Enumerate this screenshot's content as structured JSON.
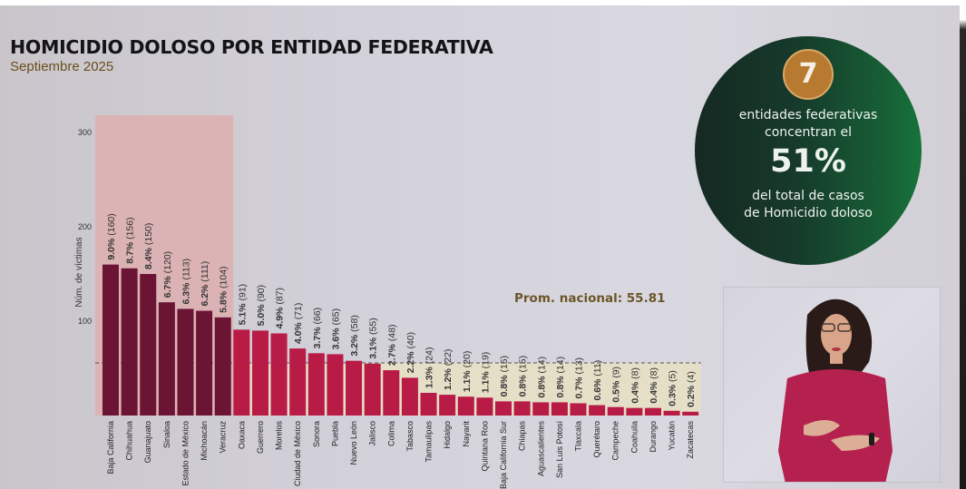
{
  "header": {
    "title": "HOMICIDIO DOLOSO POR ENTIDAD FEDERATIVA",
    "subtitle": "Septiembre 2025"
  },
  "highlight_card": {
    "number": "7",
    "line1": "entidades federativas",
    "line2": "concentran el",
    "percent": "51%",
    "line3": "del total de casos",
    "line4": "de Homicidio doloso"
  },
  "colors": {
    "top_bar": "#6b1433",
    "other_bar": "#b81b45",
    "highlight_bg": "#dcb3b5",
    "below_avg_bg": "#e6dfc8",
    "average_text": "#6b5629",
    "circle_green": "#17733a",
    "badge_gold": "#b87a30"
  },
  "chart_data": {
    "type": "bar",
    "title": "HOMICIDIO DOLOSO POR ENTIDAD FEDERATIVA",
    "subtitle": "Septiembre 2025",
    "xlabel": "",
    "ylabel": "Núm. de víctimas",
    "ylim": [
      0,
      300
    ],
    "yticks": [
      "100",
      "200",
      "300"
    ],
    "grid": false,
    "average": {
      "label": "Prom. nacional: 55.81",
      "value": 55.81
    },
    "highlighted_count": 7,
    "categories": [
      "Baja California",
      "Chihuahua",
      "Guanajuato",
      "Sinaloa",
      "Estado de México",
      "Michoacán",
      "Veracruz",
      "Oaxaca",
      "Guerrero",
      "Morelos",
      "Ciudad de México",
      "Sonora",
      "Puebla",
      "Nuevo León",
      "Jalisco",
      "Colima",
      "Tabasco",
      "Tamaulipas",
      "Hidalgo",
      "Nayarit",
      "Quintana Roo",
      "Baja California Sur",
      "Chiapas",
      "Aguascalientes",
      "San Luis Potosí",
      "Tlaxcala",
      "Querétaro",
      "Campeche",
      "Coahuila",
      "Durango",
      "Yucatán",
      "Zacatecas"
    ],
    "values": [
      160,
      156,
      150,
      120,
      113,
      111,
      104,
      91,
      90,
      87,
      71,
      66,
      65,
      58,
      55,
      48,
      40,
      24,
      22,
      20,
      19,
      15,
      15,
      14,
      14,
      13,
      11,
      9,
      8,
      8,
      5,
      4
    ],
    "labels": [
      {
        "pct": "9.0%",
        "count": "(160)"
      },
      {
        "pct": "8.7%",
        "count": "(156)"
      },
      {
        "pct": "8.4%",
        "count": "(150)"
      },
      {
        "pct": "6.7%",
        "count": "(120)"
      },
      {
        "pct": "6.3%",
        "count": "(113)"
      },
      {
        "pct": "6.2%",
        "count": "(111)"
      },
      {
        "pct": "5.8%",
        "count": "(104)"
      },
      {
        "pct": "5.1%",
        "count": "(91)"
      },
      {
        "pct": "5.0%",
        "count": "(90)"
      },
      {
        "pct": "4.9%",
        "count": "(87)"
      },
      {
        "pct": "4.0%",
        "count": "(71)"
      },
      {
        "pct": "3.7%",
        "count": "(66)"
      },
      {
        "pct": "3.6%",
        "count": "(65)"
      },
      {
        "pct": "3.2%",
        "count": "(58)"
      },
      {
        "pct": "3.1%",
        "count": "(55)"
      },
      {
        "pct": "2.7%",
        "count": "(48)"
      },
      {
        "pct": "2.2%",
        "count": "(40)"
      },
      {
        "pct": "1.3%",
        "count": "(24)"
      },
      {
        "pct": "1.2%",
        "count": "(22)"
      },
      {
        "pct": "1.1%",
        "count": "(20)"
      },
      {
        "pct": "1.1%",
        "count": "(19)"
      },
      {
        "pct": "0.8%",
        "count": "(15)"
      },
      {
        "pct": "0.8%",
        "count": "(15)"
      },
      {
        "pct": "0.8%",
        "count": "(14)"
      },
      {
        "pct": "0.8%",
        "count": "(14)"
      },
      {
        "pct": "0.7%",
        "count": "(13)"
      },
      {
        "pct": "0.6%",
        "count": "(11)"
      },
      {
        "pct": "0.5%",
        "count": "(9)"
      },
      {
        "pct": "0.4%",
        "count": "(8)"
      },
      {
        "pct": "0.4%",
        "count": "(8)"
      },
      {
        "pct": "0.3%",
        "count": "(5)"
      },
      {
        "pct": "0.2%",
        "count": "(4)"
      }
    ]
  }
}
